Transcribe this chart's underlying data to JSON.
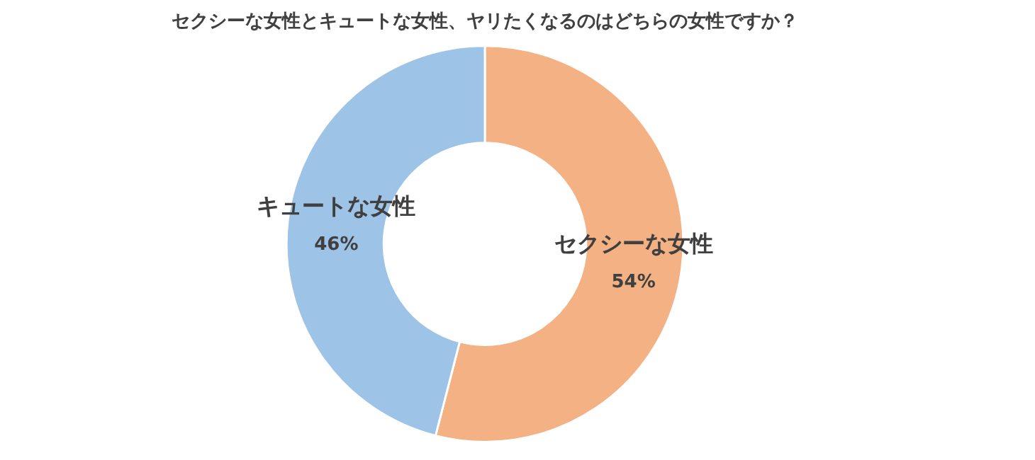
{
  "chart_data": {
    "type": "donut",
    "title": "セクシーな女性とキュートな女性、ヤリたくなるのはどちらの女性ですか？",
    "categories": [
      "セクシーな女性",
      "キュートな女性"
    ],
    "values": [
      54,
      46
    ],
    "colors": [
      "#f4b183",
      "#9dc3e6"
    ],
    "value_labels": [
      "54%",
      "46%"
    ],
    "legend": false
  }
}
